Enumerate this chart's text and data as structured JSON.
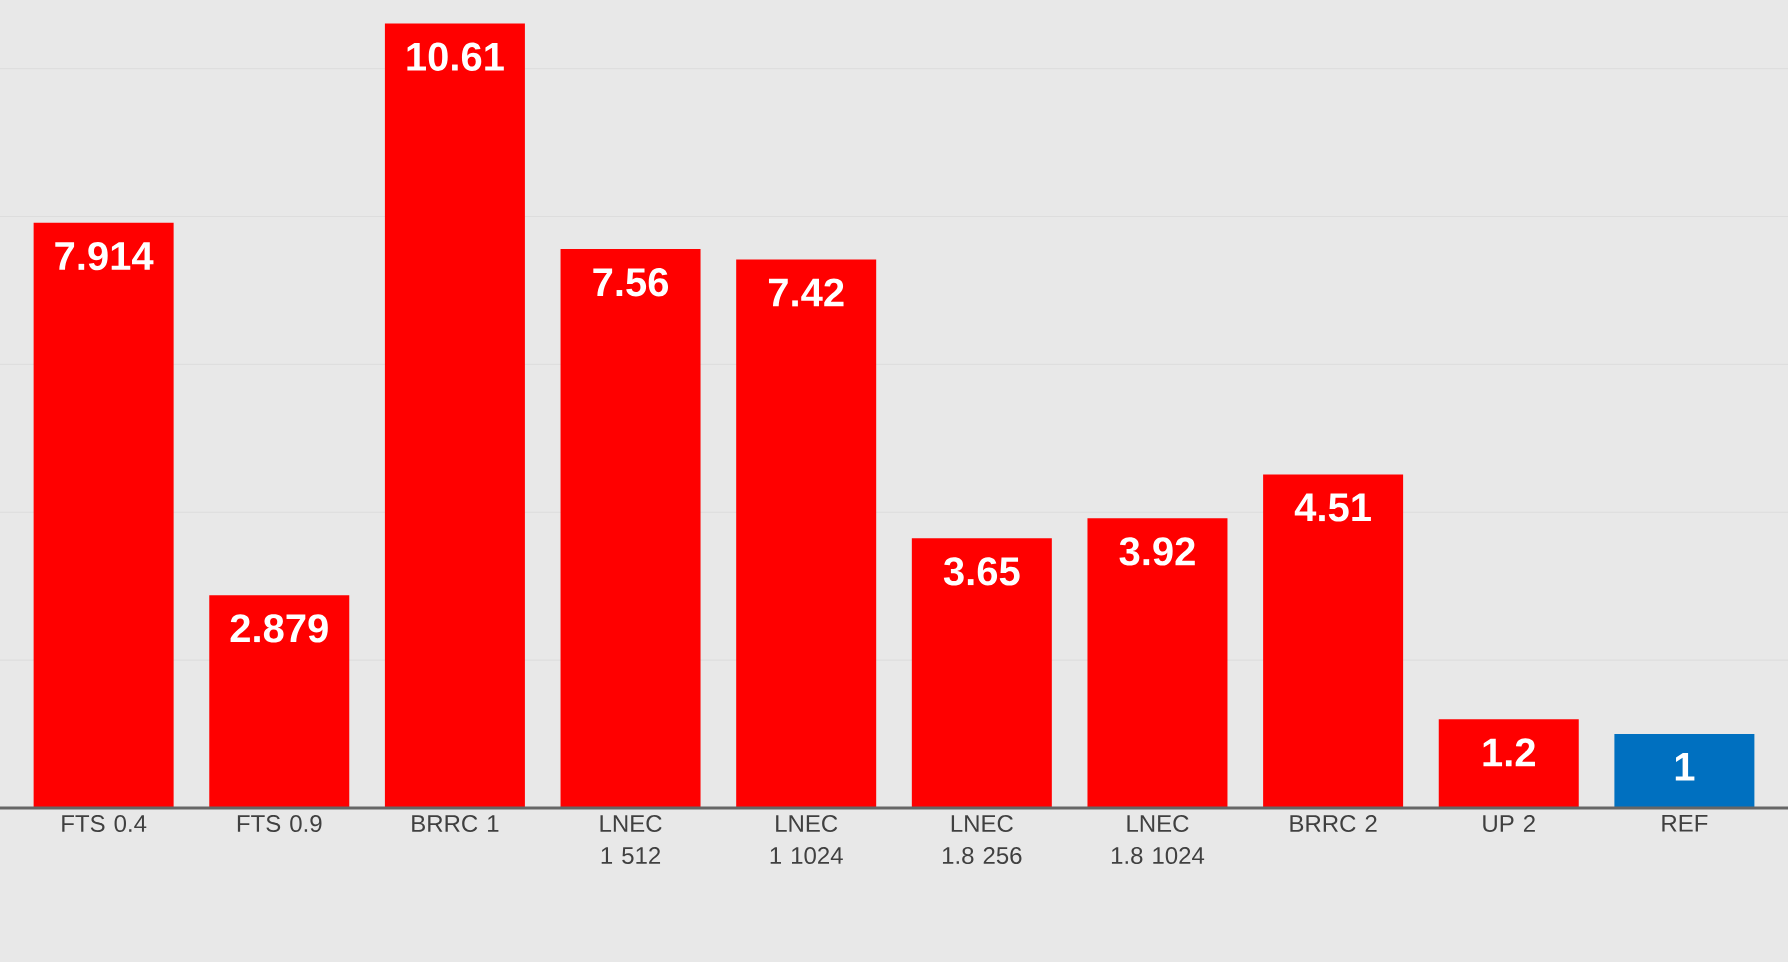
{
  "chart_data": {
    "type": "bar",
    "categories": [
      "FTS 0.4",
      "FTS 0.9",
      "BRRC 1",
      "LNEC 1 512",
      "LNEC 1 1024",
      "LNEC 1.8 256",
      "LNEC 1.8 1024",
      "BRRC 2",
      "UP 2",
      "REF"
    ],
    "values": [
      7.914,
      2.879,
      10.61,
      7.56,
      7.42,
      3.65,
      3.92,
      4.51,
      1.2,
      1
    ],
    "value_labels": [
      "7.914",
      "2.879",
      "10.61",
      "7.56",
      "7.42",
      "3.65",
      "3.92",
      "4.51",
      "1.2",
      "1"
    ],
    "colors": [
      "#ff0000",
      "#ff0000",
      "#ff0000",
      "#ff0000",
      "#ff0000",
      "#ff0000",
      "#ff0000",
      "#ff0000",
      "#ff0000",
      "#0070c0"
    ],
    "yticks": [
      {
        "value": 0,
        "label": null
      },
      {
        "value": 2,
        "label": null
      },
      {
        "value": 4,
        "label": null
      },
      {
        "value": 6,
        "label": null
      },
      {
        "value": 8,
        "label": null
      },
      {
        "value": 10,
        "label": null
      }
    ],
    "grid": "y",
    "tick_labels": "x"
  }
}
